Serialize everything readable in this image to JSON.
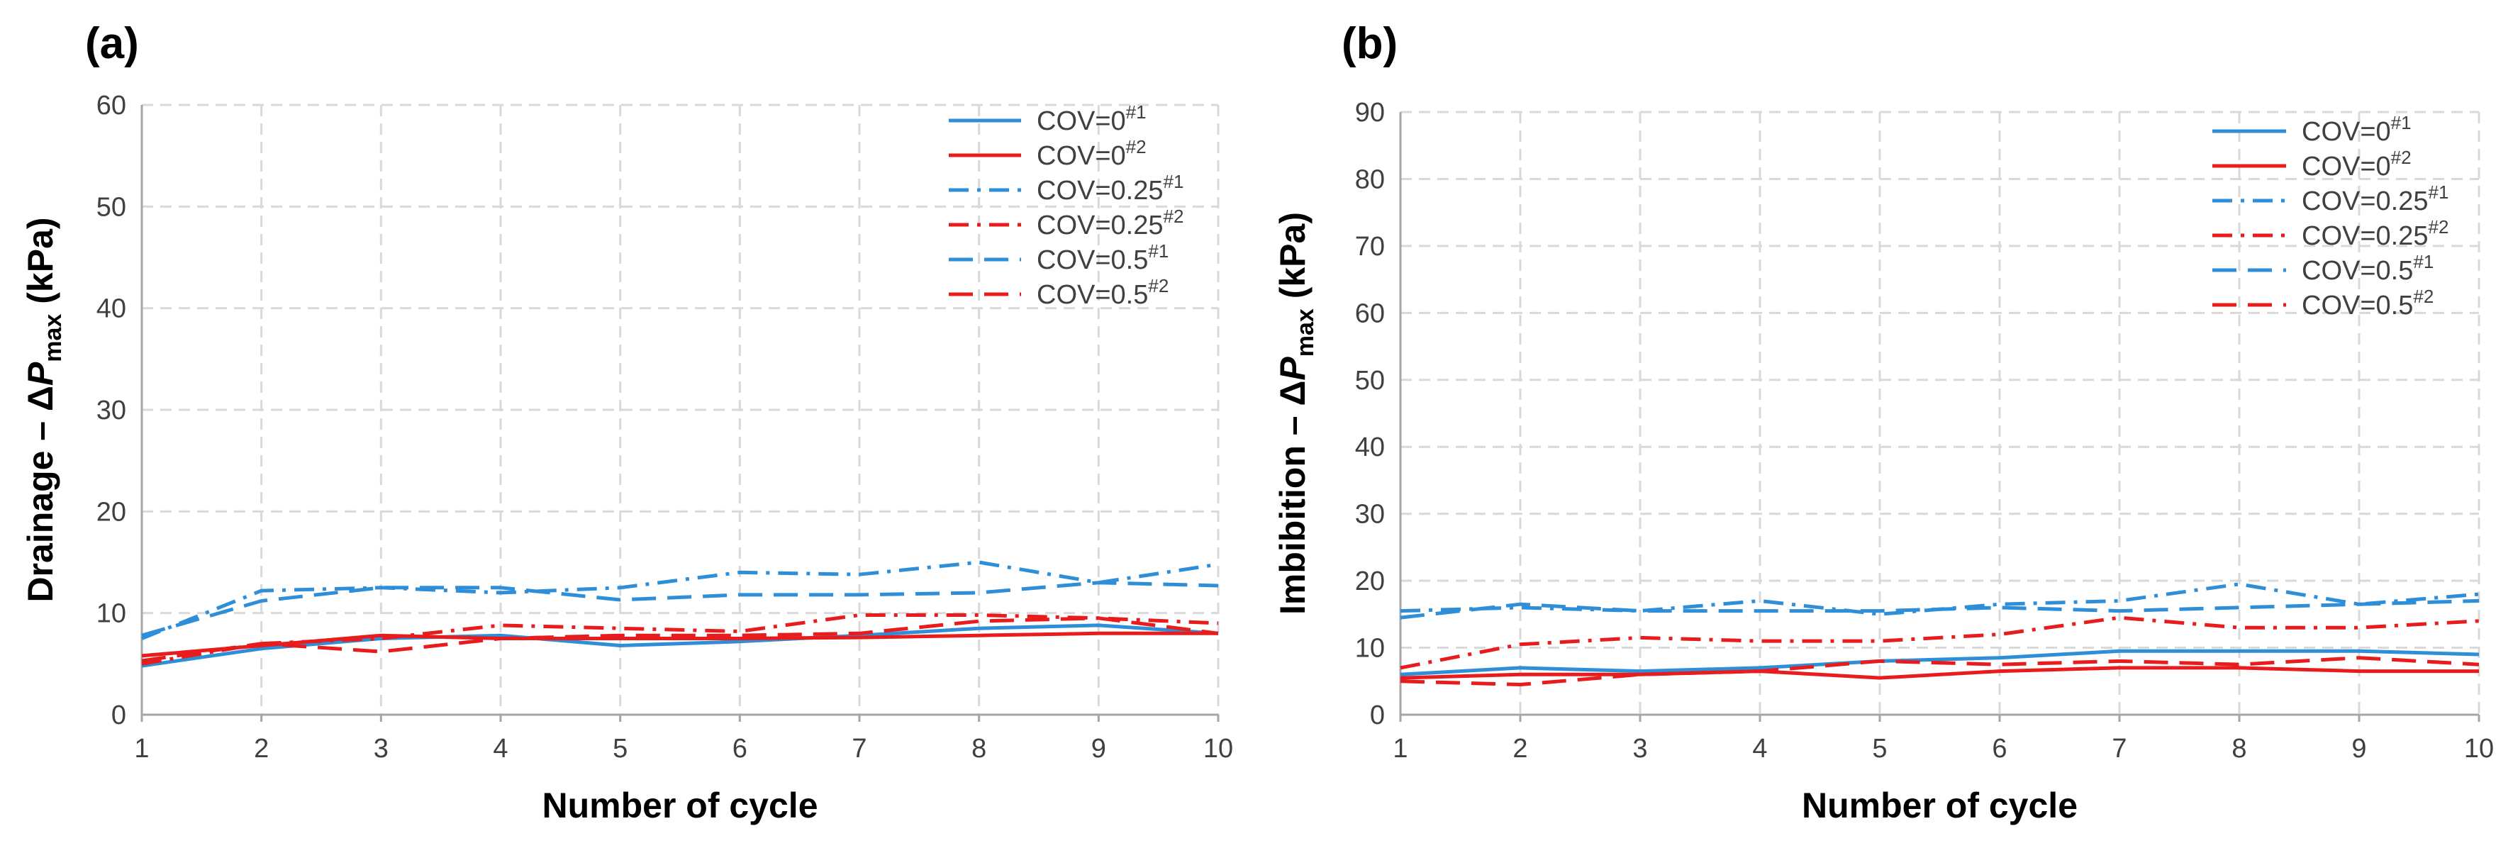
{
  "chart_data": [
    {
      "type": "line",
      "panel_label": "(a)",
      "title": "",
      "xlabel": "Number of cycle",
      "ylabel_prefix": "Drainage – Δ",
      "ylabel_var": "P",
      "ylabel_sub": "max",
      "ylabel_suffix": " (kPa)",
      "x": [
        1,
        2,
        3,
        4,
        5,
        6,
        7,
        8,
        9,
        10
      ],
      "xlim": [
        1,
        10
      ],
      "ylim": [
        0,
        60
      ],
      "xticks": [
        "1",
        "2",
        "3",
        "4",
        "5",
        "6",
        "7",
        "8",
        "9",
        "10"
      ],
      "yticks": [
        "0",
        "10",
        "20",
        "30",
        "40",
        "50",
        "60"
      ],
      "grid": true,
      "legend_position": "top-right",
      "series": [
        {
          "name": "COV=0",
          "sup": "#1",
          "color": "#2e8ed8",
          "style": "solid",
          "values": [
            4.8,
            6.5,
            7.5,
            7.8,
            6.8,
            7.2,
            7.8,
            8.5,
            8.8,
            8.0
          ]
        },
        {
          "name": "COV=0",
          "sup": "#2",
          "color": "#e81c1c",
          "style": "solid",
          "values": [
            5.8,
            6.8,
            7.8,
            7.5,
            7.5,
            7.5,
            7.6,
            7.8,
            8.0,
            8.0
          ]
        },
        {
          "name": "COV=0.25",
          "sup": "#1",
          "color": "#2e8ed8",
          "style": "dashdot",
          "values": [
            7.5,
            12.2,
            12.5,
            12.0,
            12.5,
            14.0,
            13.8,
            15.0,
            13.0,
            14.8
          ]
        },
        {
          "name": "COV=0.25",
          "sup": "#2",
          "color": "#e81c1c",
          "style": "dashdot",
          "values": [
            5.0,
            7.0,
            7.5,
            8.8,
            8.5,
            8.2,
            9.8,
            9.8,
            9.5,
            9.0
          ]
        },
        {
          "name": "COV=0.5",
          "sup": "#1",
          "color": "#2e8ed8",
          "style": "dash",
          "values": [
            7.8,
            11.2,
            12.5,
            12.5,
            11.3,
            11.8,
            11.8,
            12.0,
            13.0,
            12.7
          ]
        },
        {
          "name": "COV=0.5",
          "sup": "#2",
          "color": "#e81c1c",
          "style": "dash",
          "values": [
            5.3,
            7.0,
            6.2,
            7.5,
            7.8,
            7.8,
            8.0,
            9.2,
            9.5,
            8.0
          ]
        }
      ]
    },
    {
      "type": "line",
      "panel_label": "(b)",
      "title": "",
      "xlabel": "Number of cycle",
      "ylabel_prefix": "Imbibition – Δ",
      "ylabel_var": "P",
      "ylabel_sub": "max",
      "ylabel_suffix": " (kPa)",
      "x": [
        1,
        2,
        3,
        4,
        5,
        6,
        7,
        8,
        9,
        10
      ],
      "xlim": [
        1,
        10
      ],
      "ylim": [
        0,
        90
      ],
      "xticks": [
        "1",
        "2",
        "3",
        "4",
        "5",
        "6",
        "7",
        "8",
        "9",
        "10"
      ],
      "yticks": [
        "0",
        "10",
        "20",
        "30",
        "40",
        "50",
        "60",
        "70",
        "80",
        "90"
      ],
      "grid": true,
      "legend_position": "top-right",
      "series": [
        {
          "name": "COV=0",
          "sup": "#1",
          "color": "#2e8ed8",
          "style": "solid",
          "values": [
            6.0,
            7.0,
            6.5,
            7.0,
            8.0,
            8.5,
            9.5,
            9.5,
            9.5,
            9.0
          ]
        },
        {
          "name": "COV=0",
          "sup": "#2",
          "color": "#e81c1c",
          "style": "solid",
          "values": [
            5.5,
            6.0,
            6.0,
            6.5,
            5.5,
            6.5,
            7.0,
            7.0,
            6.5,
            6.5
          ]
        },
        {
          "name": "COV=0.25",
          "sup": "#1",
          "color": "#2e8ed8",
          "style": "dashdot",
          "values": [
            15.5,
            16.0,
            15.5,
            17.0,
            15.0,
            16.5,
            17.0,
            19.5,
            16.5,
            18.0
          ]
        },
        {
          "name": "COV=0.25",
          "sup": "#2",
          "color": "#e81c1c",
          "style": "dashdot",
          "values": [
            7.0,
            10.5,
            11.5,
            11.0,
            11.0,
            12.0,
            14.5,
            13.0,
            13.0,
            14.0
          ]
        },
        {
          "name": "COV=0.5",
          "sup": "#1",
          "color": "#2e8ed8",
          "style": "dash",
          "values": [
            14.5,
            16.5,
            15.5,
            15.5,
            15.5,
            16.0,
            15.5,
            16.0,
            16.5,
            17.0
          ]
        },
        {
          "name": "COV=0.5",
          "sup": "#2",
          "color": "#e81c1c",
          "style": "dash",
          "values": [
            5.0,
            4.5,
            6.0,
            6.5,
            8.0,
            7.5,
            8.0,
            7.5,
            8.5,
            7.5
          ]
        }
      ]
    }
  ]
}
